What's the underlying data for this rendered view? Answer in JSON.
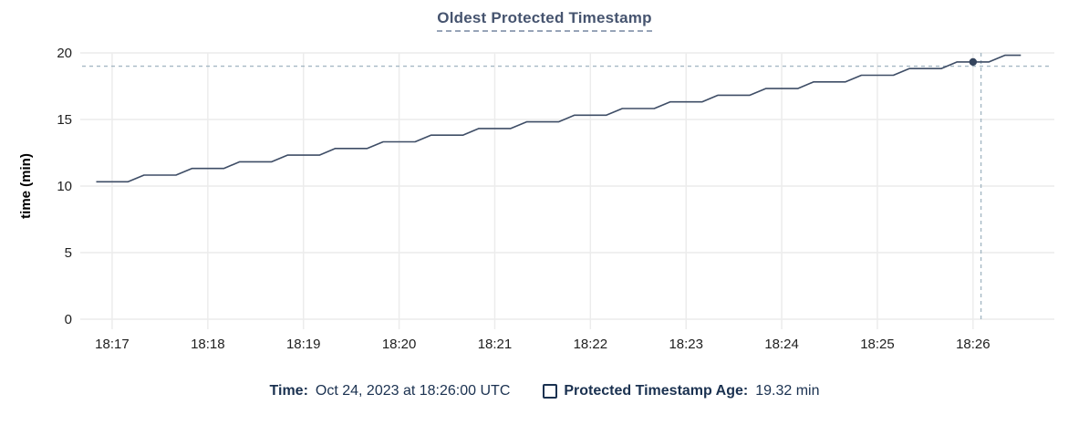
{
  "chart_data": {
    "type": "line",
    "title": "Oldest Protected Timestamp",
    "xlabel": "",
    "ylabel": "time (min)",
    "ylim": [
      0,
      20
    ],
    "y_ticks": [
      0,
      5,
      10,
      15,
      20
    ],
    "grid": true,
    "legend_position": "bottom",
    "x_encoding": "seconds after 18:00 UTC",
    "x_range_s": [
      1000,
      1611
    ],
    "x_ticks": [
      {
        "s": 1020,
        "label": "18:17"
      },
      {
        "s": 1080,
        "label": "18:18"
      },
      {
        "s": 1140,
        "label": "18:19"
      },
      {
        "s": 1200,
        "label": "18:20"
      },
      {
        "s": 1260,
        "label": "18:21"
      },
      {
        "s": 1320,
        "label": "18:22"
      },
      {
        "s": 1380,
        "label": "18:23"
      },
      {
        "s": 1440,
        "label": "18:24"
      },
      {
        "s": 1500,
        "label": "18:25"
      },
      {
        "s": 1560,
        "label": "18:26"
      }
    ],
    "series": [
      {
        "name": "Protected Timestamp Age",
        "unit": "min",
        "points": [
          [
            1010,
            10.32
          ],
          [
            1020,
            10.32
          ],
          [
            1030,
            10.32
          ],
          [
            1040,
            10.82
          ],
          [
            1050,
            10.82
          ],
          [
            1060,
            10.82
          ],
          [
            1070,
            11.32
          ],
          [
            1080,
            11.32
          ],
          [
            1090,
            11.32
          ],
          [
            1100,
            11.82
          ],
          [
            1110,
            11.82
          ],
          [
            1120,
            11.82
          ],
          [
            1130,
            12.32
          ],
          [
            1140,
            12.32
          ],
          [
            1150,
            12.32
          ],
          [
            1160,
            12.82
          ],
          [
            1170,
            12.82
          ],
          [
            1180,
            12.82
          ],
          [
            1190,
            13.32
          ],
          [
            1200,
            13.32
          ],
          [
            1210,
            13.32
          ],
          [
            1220,
            13.82
          ],
          [
            1230,
            13.82
          ],
          [
            1240,
            13.82
          ],
          [
            1250,
            14.32
          ],
          [
            1260,
            14.32
          ],
          [
            1270,
            14.32
          ],
          [
            1280,
            14.82
          ],
          [
            1290,
            14.82
          ],
          [
            1300,
            14.82
          ],
          [
            1310,
            15.32
          ],
          [
            1320,
            15.32
          ],
          [
            1330,
            15.32
          ],
          [
            1340,
            15.82
          ],
          [
            1350,
            15.82
          ],
          [
            1360,
            15.82
          ],
          [
            1370,
            16.32
          ],
          [
            1380,
            16.32
          ],
          [
            1390,
            16.32
          ],
          [
            1400,
            16.82
          ],
          [
            1410,
            16.82
          ],
          [
            1420,
            16.82
          ],
          [
            1430,
            17.32
          ],
          [
            1440,
            17.32
          ],
          [
            1450,
            17.32
          ],
          [
            1460,
            17.82
          ],
          [
            1470,
            17.82
          ],
          [
            1480,
            17.82
          ],
          [
            1490,
            18.32
          ],
          [
            1500,
            18.32
          ],
          [
            1510,
            18.32
          ],
          [
            1520,
            18.82
          ],
          [
            1530,
            18.82
          ],
          [
            1540,
            18.82
          ],
          [
            1550,
            19.32
          ],
          [
            1560,
            19.32
          ],
          [
            1570,
            19.32
          ],
          [
            1580,
            19.82
          ],
          [
            1590,
            19.82
          ]
        ]
      }
    ],
    "hover": {
      "crosshair_time_s": 1565,
      "crosshair_value": 19.0,
      "point_time_s": 1560,
      "point_value": 19.32
    },
    "colors": {
      "line": "#3e4d66",
      "point": "#34445d",
      "grid": "#ececec",
      "crosshair": "#a5b8c4",
      "tick_text": "#202020",
      "axis_title_text": "#000000",
      "title": "#46546f",
      "title_underline": "#97a4b8",
      "footer_text": "#1a3150"
    }
  },
  "footer": {
    "time_label": "Time:",
    "time_value": "Oct 24, 2023 at 18:26:00 UTC",
    "series_label": "Protected Timestamp Age:",
    "series_value": "19.32 min"
  }
}
